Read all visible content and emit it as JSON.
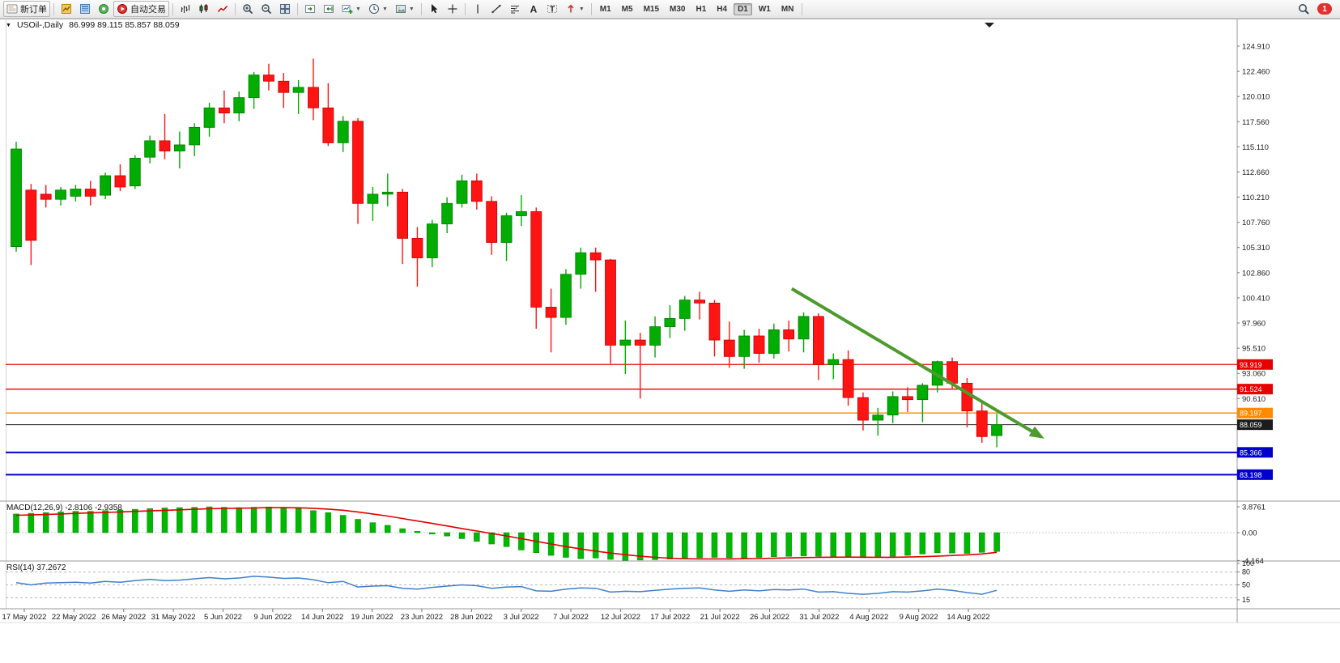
{
  "window": {
    "collapse_icon": "▼",
    "title_symbol": "USOil-,Daily",
    "ohlc": "86.999 89.115 85.857 88.059"
  },
  "toolbar": {
    "notification_count": "1",
    "active_timeframe": "D1",
    "timeframes": [
      "M1",
      "M5",
      "M15",
      "M30",
      "H1",
      "H4",
      "D1",
      "W1",
      "MN"
    ],
    "items": [
      {
        "kind": "button",
        "name": "new-order-button",
        "icon": "new-order",
        "label": "新订单"
      },
      {
        "kind": "sep"
      },
      {
        "kind": "icon",
        "name": "market-watch-button",
        "icon": "market-watch"
      },
      {
        "kind": "icon",
        "name": "data-window-button",
        "icon": "data-window"
      },
      {
        "kind": "icon",
        "name": "navigator-button",
        "icon": "navigator"
      },
      {
        "kind": "button",
        "name": "autotrading-button",
        "icon": "autotrading",
        "label": "自动交易"
      },
      {
        "kind": "sep"
      },
      {
        "kind": "icon",
        "name": "bar-chart-button",
        "icon": "bars"
      },
      {
        "kind": "icon",
        "name": "candlestick-chart-button",
        "icon": "candles"
      },
      {
        "kind": "icon",
        "name": "line-chart-button",
        "icon": "line"
      },
      {
        "kind": "sep"
      },
      {
        "kind": "icon",
        "name": "zoom-in-button",
        "icon": "zoom-in"
      },
      {
        "kind": "icon",
        "name": "zoom-out-button",
        "icon": "zoom-out"
      },
      {
        "kind": "icon",
        "name": "tile-windows-button",
        "icon": "tile"
      },
      {
        "kind": "sep"
      },
      {
        "kind": "icon",
        "name": "auto-scroll-button",
        "icon": "autoscroll"
      },
      {
        "kind": "icon",
        "name": "chart-shift-button",
        "icon": "shift"
      },
      {
        "kind": "icon-dd",
        "name": "new-chart-button",
        "icon": "new-chart"
      },
      {
        "kind": "icon-dd",
        "name": "periods-button",
        "icon": "clock"
      },
      {
        "kind": "icon-dd",
        "name": "templates-button",
        "icon": "template"
      },
      {
        "kind": "sep"
      },
      {
        "kind": "icon",
        "name": "cursor-button",
        "icon": "cursor"
      },
      {
        "kind": "icon",
        "name": "crosshair-button",
        "icon": "crosshair"
      },
      {
        "kind": "sep"
      },
      {
        "kind": "icon",
        "name": "vertical-line-button",
        "icon": "vline"
      },
      {
        "kind": "icon",
        "name": "trendline-button",
        "icon": "trendline"
      },
      {
        "kind": "icon",
        "name": "fibonacci-button",
        "icon": "fibo"
      },
      {
        "kind": "icon",
        "name": "text-button",
        "icon": "text"
      },
      {
        "kind": "icon",
        "name": "label-button",
        "icon": "label"
      },
      {
        "kind": "icon-dd",
        "name": "arrows-button",
        "icon": "arrow-obj"
      },
      {
        "kind": "sep"
      }
    ]
  },
  "colors": {
    "candle_up": "#00ad00",
    "candle_up_border": "#007d00",
    "candle_down": "#ff1414",
    "candle_down_border": "#c40000",
    "macd_bar": "#00b800",
    "macd_bar_border": "#008f00",
    "macd_signal": "#e00000",
    "rsi_line": "#3f7fca",
    "trend_arrow": "#4d9a2d",
    "resistance_line": "#e60000",
    "pivot_line": "#ff8a00",
    "current_price_line": "#1c1c1c",
    "support_line": "#0000cc"
  },
  "chart_data": [
    {
      "type": "candlestick",
      "title": "USOil-,Daily",
      "ohlc_line": {
        "open": "86.999",
        "high": "89.115",
        "low": "85.857",
        "close": "88.059"
      },
      "y_axis_ticks": [
        "124.910",
        "122.460",
        "120.010",
        "117.560",
        "115.110",
        "112.660",
        "110.210",
        "107.760",
        "105.310",
        "102.860",
        "100.410",
        "97.960",
        "95.510",
        "93.060",
        "90.610"
      ],
      "price_lines": [
        {
          "label": "93.919",
          "price": 93.919,
          "color": "#e60000",
          "width": 1.3,
          "role": "resistance"
        },
        {
          "label": "91.524",
          "price": 91.524,
          "color": "#e60000",
          "width": 1.3,
          "role": "resistance"
        },
        {
          "label": "89.197",
          "price": 89.197,
          "color": "#ff8a00",
          "width": 1.3,
          "role": "pivot"
        },
        {
          "label": "88.059",
          "price": 88.059,
          "color": "#1c1c1c",
          "width": 1,
          "role": "current-price"
        },
        {
          "label": "85.366",
          "price": 85.366,
          "color": "#0000cc",
          "width": 2,
          "role": "support"
        },
        {
          "label": "83.198",
          "price": 83.198,
          "color": "#0000cc",
          "width": 2,
          "role": "support"
        }
      ],
      "trend_arrow": {
        "from_index": 52.2,
        "from_price": 101.3,
        "to_index": 69.2,
        "to_price": 86.7
      },
      "x_axis_labels": [
        "17 May 2022",
        "22 May 2022",
        "26 May 2022",
        "31 May 2022",
        "5 Jun 2022",
        "9 Jun 2022",
        "14 Jun 2022",
        "19 Jun 2022",
        "23 Jun 2022",
        "28 Jun 2022",
        "3 Jul 2022",
        "7 Jul 2022",
        "12 Jul 2022",
        "17 Jul 2022",
        "21 Jul 2022",
        "26 Jul 2022",
        "31 Jul 2022",
        "4 Aug 2022",
        "9 Aug 2022",
        "14 Aug 2022"
      ],
      "candles": [
        [
          105.4,
          115.6,
          104.9,
          114.9
        ],
        [
          110.9,
          111.5,
          103.6,
          106.0
        ],
        [
          110.5,
          111.4,
          109.2,
          110.0
        ],
        [
          110.0,
          111.2,
          109.4,
          110.9
        ],
        [
          110.3,
          111.4,
          109.8,
          111.0
        ],
        [
          111.0,
          111.8,
          109.4,
          110.3
        ],
        [
          110.4,
          112.6,
          110.0,
          112.3
        ],
        [
          112.3,
          113.4,
          110.8,
          111.2
        ],
        [
          111.3,
          114.3,
          111.0,
          114.0
        ],
        [
          114.1,
          116.2,
          113.5,
          115.7
        ],
        [
          115.7,
          118.3,
          113.9,
          114.7
        ],
        [
          114.7,
          116.6,
          113.0,
          115.3
        ],
        [
          115.3,
          117.4,
          114.2,
          117.0
        ],
        [
          117.0,
          119.4,
          116.1,
          118.9
        ],
        [
          118.9,
          120.6,
          117.4,
          118.4
        ],
        [
          118.4,
          120.5,
          117.6,
          119.9
        ],
        [
          119.9,
          122.4,
          118.8,
          122.1
        ],
        [
          122.1,
          123.2,
          120.6,
          121.5
        ],
        [
          121.5,
          122.3,
          118.9,
          120.4
        ],
        [
          120.4,
          121.6,
          118.3,
          120.9
        ],
        [
          120.9,
          123.7,
          117.7,
          118.9
        ],
        [
          118.9,
          121.3,
          115.2,
          115.5
        ],
        [
          115.5,
          118.1,
          114.6,
          117.6
        ],
        [
          117.6,
          117.9,
          107.6,
          109.6
        ],
        [
          109.6,
          111.2,
          107.9,
          110.5
        ],
        [
          110.5,
          112.5,
          109.3,
          110.7
        ],
        [
          110.7,
          111.0,
          103.7,
          106.2
        ],
        [
          106.2,
          107.3,
          101.5,
          104.3
        ],
        [
          104.3,
          108.0,
          103.4,
          107.6
        ],
        [
          107.6,
          110.2,
          106.7,
          109.6
        ],
        [
          109.6,
          112.4,
          109.2,
          111.8
        ],
        [
          111.8,
          112.5,
          109.0,
          109.8
        ],
        [
          109.8,
          110.3,
          104.6,
          105.8
        ],
        [
          105.8,
          108.7,
          104.0,
          108.4
        ],
        [
          108.4,
          110.4,
          107.4,
          108.8
        ],
        [
          108.8,
          109.2,
          97.4,
          99.5
        ],
        [
          99.5,
          101.3,
          95.1,
          98.5
        ],
        [
          98.5,
          103.2,
          97.8,
          102.7
        ],
        [
          102.7,
          105.3,
          101.3,
          104.8
        ],
        [
          104.8,
          105.3,
          101.0,
          104.1
        ],
        [
          104.1,
          104.2,
          94.0,
          95.8
        ],
        [
          95.8,
          98.2,
          93.0,
          96.3
        ],
        [
          96.3,
          97.0,
          90.6,
          95.8
        ],
        [
          95.8,
          98.6,
          94.6,
          97.6
        ],
        [
          97.6,
          99.7,
          96.5,
          98.4
        ],
        [
          98.4,
          100.6,
          97.2,
          100.2
        ],
        [
          100.2,
          101.0,
          98.3,
          99.9
        ],
        [
          99.9,
          100.2,
          94.7,
          96.3
        ],
        [
          96.3,
          98.1,
          93.6,
          94.7
        ],
        [
          94.7,
          97.3,
          93.5,
          96.7
        ],
        [
          96.7,
          97.4,
          94.1,
          95.0
        ],
        [
          95.0,
          97.9,
          94.5,
          97.3
        ],
        [
          97.3,
          98.2,
          95.2,
          96.4
        ],
        [
          96.4,
          99.0,
          95.1,
          98.6
        ],
        [
          98.6,
          98.9,
          92.4,
          93.9
        ],
        [
          93.9,
          95.0,
          92.5,
          94.4
        ],
        [
          94.4,
          95.3,
          89.9,
          90.7
        ],
        [
          90.7,
          91.2,
          87.5,
          88.5
        ],
        [
          88.5,
          89.7,
          87.0,
          89.0
        ],
        [
          89.0,
          91.3,
          88.2,
          90.8
        ],
        [
          90.8,
          91.7,
          89.3,
          90.5
        ],
        [
          90.5,
          92.1,
          88.3,
          91.9
        ],
        [
          91.9,
          94.3,
          91.2,
          94.2
        ],
        [
          94.2,
          94.6,
          91.5,
          92.1
        ],
        [
          92.1,
          92.6,
          87.8,
          89.4
        ],
        [
          89.4,
          90.4,
          86.3,
          86.9
        ],
        [
          86.999,
          89.115,
          85.857,
          88.059
        ]
      ]
    },
    {
      "type": "bar",
      "title": "MACD(12,26,9) -2.8106 -2.9358",
      "name": "MACD",
      "params": "12,26,9",
      "value": "-2.8106",
      "signal_value": "-2.9358",
      "y_ticks": [
        {
          "label": "3.8761",
          "value": 3.8761
        },
        {
          "label": "0.00",
          "value": 0
        },
        {
          "label": "-4.164",
          "value": -4.164
        }
      ],
      "histogram": [
        2.8,
        2.9,
        3.0,
        3.1,
        3.2,
        3.2,
        3.3,
        3.4,
        3.5,
        3.6,
        3.7,
        3.75,
        3.8,
        3.87,
        3.8,
        3.75,
        3.8,
        3.85,
        3.7,
        3.6,
        3.3,
        3.0,
        2.6,
        2.0,
        1.5,
        1.1,
        0.6,
        0.2,
        -0.2,
        -0.5,
        -0.9,
        -1.3,
        -1.7,
        -2.1,
        -2.6,
        -3.0,
        -3.4,
        -3.7,
        -3.9,
        -3.8,
        -4.0,
        -4.16,
        -4.1,
        -4.05,
        -3.95,
        -3.85,
        -3.75,
        -3.7,
        -3.75,
        -3.8,
        -3.7,
        -3.6,
        -3.55,
        -3.5,
        -3.55,
        -3.65,
        -3.7,
        -3.75,
        -3.7,
        -3.55,
        -3.4,
        -3.2,
        -3.0,
        -3.05,
        -3.1,
        -2.95,
        -2.81
      ],
      "signal": [
        2.6,
        2.65,
        2.72,
        2.8,
        2.88,
        2.95,
        3.03,
        3.1,
        3.18,
        3.26,
        3.34,
        3.42,
        3.5,
        3.58,
        3.63,
        3.66,
        3.7,
        3.74,
        3.74,
        3.72,
        3.65,
        3.52,
        3.35,
        3.1,
        2.8,
        2.48,
        2.12,
        1.75,
        1.38,
        1.0,
        0.62,
        0.25,
        -0.12,
        -0.5,
        -0.9,
        -1.3,
        -1.7,
        -2.08,
        -2.44,
        -2.76,
        -3.05,
        -3.3,
        -3.52,
        -3.7,
        -3.82,
        -3.9,
        -3.93,
        -3.93,
        -3.92,
        -3.9,
        -3.87,
        -3.83,
        -3.78,
        -3.73,
        -3.69,
        -3.67,
        -3.66,
        -3.67,
        -3.68,
        -3.68,
        -3.65,
        -3.6,
        -3.52,
        -3.42,
        -3.32,
        -3.18,
        -2.94
      ]
    },
    {
      "type": "line",
      "title": "RSI(14) 37.2672",
      "name": "RSI",
      "period": "14",
      "value": "37.2672",
      "levels": [
        {
          "label": "100",
          "value": 100
        },
        {
          "label": "80",
          "value": 80
        },
        {
          "label": "50",
          "value": 50
        },
        {
          "label": "15",
          "value": 15
        }
      ],
      "level_lines": [
        80,
        50,
        20
      ],
      "values": [
        55,
        50,
        54,
        55,
        56,
        54,
        58,
        56,
        60,
        63,
        60,
        61,
        64,
        67,
        64,
        66,
        70,
        68,
        65,
        66,
        62,
        55,
        58,
        45,
        47,
        48,
        42,
        40,
        44,
        47,
        50,
        48,
        42,
        45,
        46,
        36,
        35,
        40,
        43,
        42,
        33,
        35,
        34,
        37,
        40,
        42,
        43,
        38,
        35,
        38,
        36,
        39,
        38,
        40,
        33,
        34,
        30,
        28,
        30,
        34,
        33,
        36,
        40,
        37,
        32,
        28,
        37.27
      ]
    }
  ]
}
